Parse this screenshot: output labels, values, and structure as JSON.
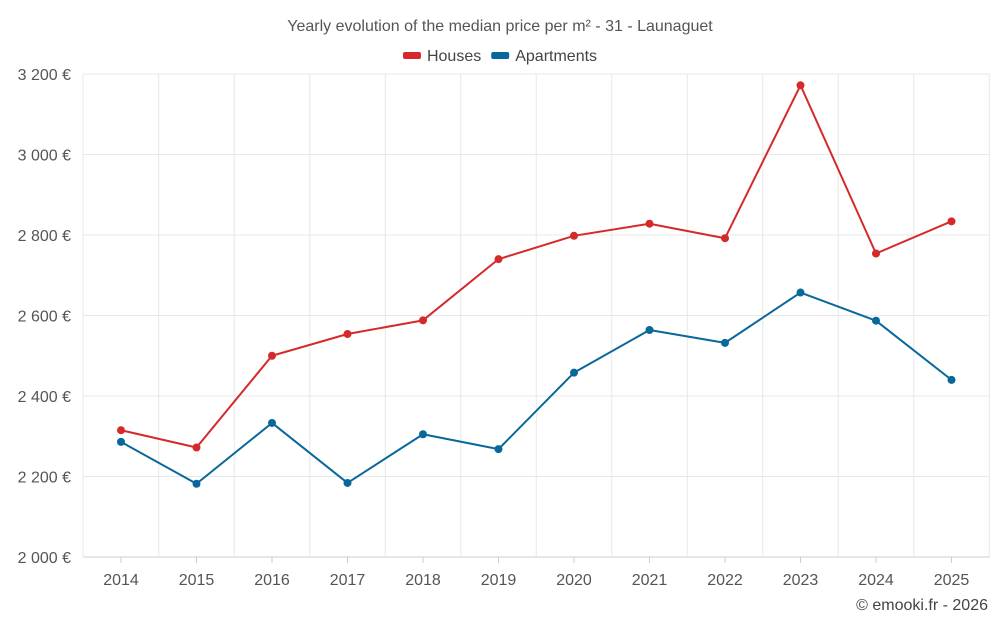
{
  "chart_data": {
    "type": "line",
    "title": "Yearly evolution of the median price per m² - 31 - Launaguet",
    "xlabel": "",
    "ylabel": "",
    "categories": [
      "2014",
      "2015",
      "2016",
      "2017",
      "2018",
      "2019",
      "2020",
      "2021",
      "2022",
      "2023",
      "2024",
      "2025"
    ],
    "series": [
      {
        "name": "Houses",
        "color": "#d42a2a",
        "values": [
          2315,
          2272,
          2500,
          2554,
          2588,
          2740,
          2798,
          2828,
          2792,
          3172,
          2754,
          2834
        ]
      },
      {
        "name": "Apartments",
        "color": "#08689a",
        "values": [
          2286,
          2182,
          2333,
          2184,
          2305,
          2268,
          2458,
          2564,
          2532,
          2657,
          2587,
          2440
        ]
      }
    ],
    "ylim": [
      2000,
      3200
    ],
    "yticks": [
      2000,
      2200,
      2400,
      2600,
      2800,
      3000,
      3200
    ],
    "ytick_labels": [
      "2 000 €",
      "2 200 €",
      "2 400 €",
      "2 600 €",
      "2 800 €",
      "3 000 €",
      "3 200 €"
    ],
    "grid": true,
    "legend_position": "top-center"
  },
  "credit": "© emooki.fr - 2026"
}
